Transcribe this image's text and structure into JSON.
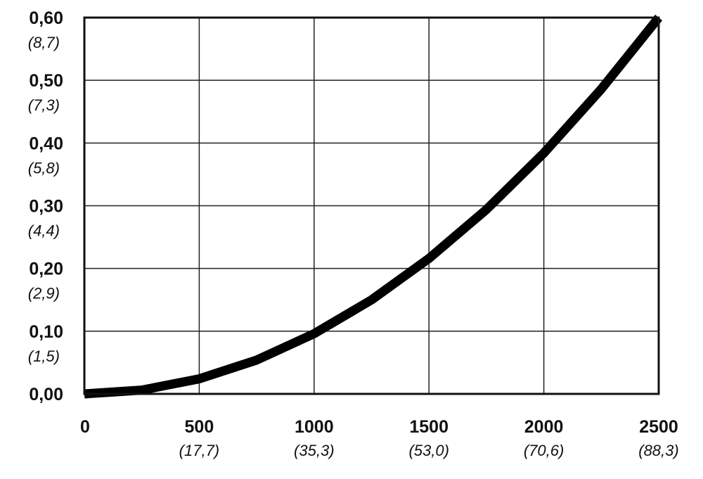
{
  "chart_data": {
    "type": "line",
    "title": "",
    "xlabel": "",
    "ylabel": "",
    "xlim": [
      0,
      2500
    ],
    "ylim": [
      0,
      0.6
    ],
    "grid": true,
    "x_ticks": [
      {
        "value": 0,
        "label": "0",
        "sublabel": ""
      },
      {
        "value": 500,
        "label": "500",
        "sublabel": "(17,7)"
      },
      {
        "value": 1000,
        "label": "1000",
        "sublabel": "(35,3)"
      },
      {
        "value": 1500,
        "label": "1500",
        "sublabel": "(53,0)"
      },
      {
        "value": 2000,
        "label": "2000",
        "sublabel": "(70,6)"
      },
      {
        "value": 2500,
        "label": "2500",
        "sublabel": "(88,3)"
      }
    ],
    "y_ticks": [
      {
        "value": 0,
        "label": "0,00",
        "sublabel": ""
      },
      {
        "value": 0.1,
        "label": "0,10",
        "sublabel": "(1,5)"
      },
      {
        "value": 0.2,
        "label": "0,20",
        "sublabel": "(2,9)"
      },
      {
        "value": 0.3,
        "label": "0,30",
        "sublabel": "(4,4)"
      },
      {
        "value": 0.4,
        "label": "0,40",
        "sublabel": "(5,8)"
      },
      {
        "value": 0.5,
        "label": "0,50",
        "sublabel": "(7,3)"
      },
      {
        "value": 0.6,
        "label": "0,60",
        "sublabel": "(8,7)"
      }
    ],
    "series": [
      {
        "color": "#000000",
        "x": [
          0,
          250,
          500,
          750,
          1000,
          1250,
          1500,
          1750,
          2000,
          2250,
          2500
        ],
        "y": [
          0,
          0.006,
          0.024,
          0.054,
          0.096,
          0.15,
          0.216,
          0.294,
          0.384,
          0.486,
          0.6
        ]
      }
    ]
  }
}
